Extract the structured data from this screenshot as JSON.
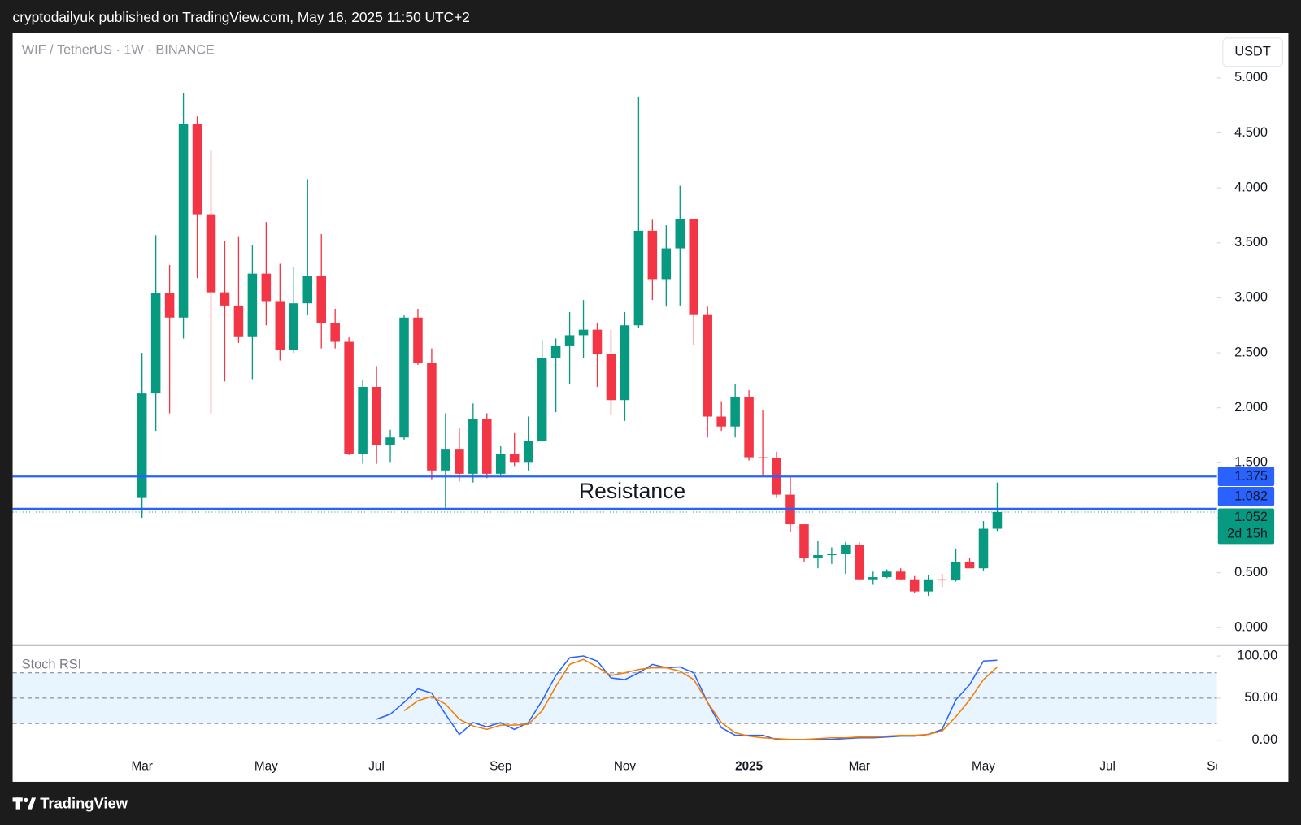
{
  "header": {
    "text": "cryptodailyuk published on TradingView.com, May 16, 2025 11:50 UTC+2"
  },
  "footer": {
    "brand": "TradingView"
  },
  "chart_data": [
    {
      "type": "candlestick",
      "symbol": "WIF / TetherUS · 1W · BINANCE",
      "currency": "USDT",
      "annotation": "Resistance",
      "categories": [
        "Mar",
        null,
        null,
        null,
        null,
        null,
        null,
        null,
        null,
        "May",
        null,
        null,
        null,
        null,
        null,
        null,
        null,
        "Jul",
        null,
        null,
        null,
        null,
        null,
        null,
        null,
        null,
        "Sep",
        null,
        null,
        null,
        null,
        null,
        null,
        null,
        null,
        "Nov",
        null,
        null,
        null,
        null,
        null,
        null,
        null,
        null,
        "2025",
        null,
        null,
        null,
        null,
        null,
        null,
        null,
        "Mar",
        null,
        null,
        null,
        null,
        null,
        null,
        null,
        null,
        "May",
        null,
        null,
        null,
        null,
        null,
        null,
        null,
        null,
        "Jul",
        null,
        null,
        null,
        null,
        null,
        null,
        null,
        "Sep"
      ],
      "open": [
        1.18,
        2.13,
        3.04,
        2.82,
        4.58,
        3.76,
        3.05,
        2.93,
        2.65,
        3.22,
        2.97,
        2.53,
        2.95,
        3.2,
        2.77,
        2.6,
        1.58,
        2.19,
        1.66,
        1.73,
        2.82,
        2.41,
        1.43,
        1.62,
        1.4,
        1.9,
        1.4,
        1.58,
        1.5,
        1.7,
        2.45,
        2.56,
        2.66,
        2.71,
        2.49,
        2.07,
        2.75,
        3.61,
        3.17,
        3.45,
        3.72,
        2.85,
        1.92,
        1.83,
        2.1,
        1.55,
        1.54,
        1.21,
        0.94,
        0.63,
        0.66,
        0.67,
        0.75,
        0.44,
        0.46,
        0.51,
        0.44,
        0.33,
        0.44,
        0.43,
        0.6,
        0.54,
        0.9,
        null,
        null,
        null,
        null,
        null,
        null,
        null,
        null,
        null,
        null,
        null,
        null,
        null,
        null,
        null,
        null
      ],
      "high": [
        2.5,
        3.57,
        3.3,
        4.86,
        4.65,
        4.34,
        3.52,
        3.56,
        3.48,
        3.69,
        3.31,
        3.28,
        4.08,
        3.58,
        2.9,
        2.64,
        2.25,
        2.38,
        1.8,
        2.84,
        2.9,
        2.54,
        1.95,
        1.82,
        2.04,
        1.95,
        1.65,
        1.77,
        1.92,
        2.62,
        2.63,
        2.87,
        2.98,
        2.77,
        2.71,
        2.87,
        4.83,
        3.71,
        3.66,
        4.02,
        3.72,
        2.92,
        2.06,
        2.22,
        2.16,
        1.98,
        1.6,
        1.37,
        0.94,
        0.79,
        0.73,
        0.78,
        0.78,
        0.51,
        0.53,
        0.54,
        0.47,
        0.48,
        0.49,
        0.72,
        0.63,
        0.97,
        1.32,
        null,
        null,
        null,
        null,
        null,
        null,
        null,
        null,
        null,
        null,
        null,
        null,
        null,
        null,
        null,
        null
      ],
      "low": [
        1.0,
        1.79,
        1.95,
        2.63,
        3.18,
        1.95,
        2.24,
        2.59,
        2.26,
        2.75,
        2.43,
        2.5,
        2.84,
        2.54,
        2.54,
        1.57,
        1.49,
        1.49,
        1.5,
        1.71,
        2.39,
        1.35,
        1.09,
        1.33,
        1.32,
        1.36,
        1.38,
        1.47,
        1.43,
        1.69,
        1.96,
        2.22,
        2.45,
        2.19,
        1.94,
        1.88,
        2.73,
        2.98,
        2.92,
        2.93,
        2.57,
        1.73,
        1.79,
        1.73,
        1.52,
        1.37,
        1.18,
        0.87,
        0.6,
        0.54,
        0.58,
        0.49,
        0.43,
        0.39,
        0.45,
        0.43,
        0.32,
        0.29,
        0.37,
        0.42,
        0.54,
        0.52,
        0.88,
        null,
        null,
        null,
        null,
        null,
        null,
        null,
        null,
        null,
        null,
        null,
        null,
        null,
        null,
        null,
        null
      ],
      "close": [
        2.13,
        3.04,
        2.82,
        4.58,
        3.76,
        3.05,
        2.93,
        2.65,
        3.22,
        2.97,
        2.53,
        2.95,
        3.2,
        2.77,
        2.6,
        1.58,
        2.19,
        1.66,
        1.73,
        2.82,
        2.41,
        1.43,
        1.62,
        1.4,
        1.9,
        1.4,
        1.58,
        1.5,
        1.7,
        2.45,
        2.56,
        2.66,
        2.71,
        2.49,
        2.07,
        2.75,
        3.61,
        3.17,
        3.45,
        3.72,
        2.85,
        1.92,
        1.83,
        2.1,
        1.55,
        1.54,
        1.21,
        0.94,
        0.63,
        0.66,
        0.67,
        0.75,
        0.44,
        0.46,
        0.51,
        0.44,
        0.33,
        0.44,
        0.43,
        0.6,
        0.54,
        0.9,
        1.052,
        null,
        null,
        null,
        null,
        null,
        null,
        null,
        null,
        null,
        null,
        null,
        null,
        null,
        null,
        null,
        null
      ],
      "up_color": "#089981",
      "down_color": "#f23645",
      "hlines": [
        1.375,
        1.082
      ],
      "hline_color": "#2962ff",
      "countdown": "2d 15h",
      "ylim": [
        -0.158,
        5.407
      ],
      "yticks": [
        {
          "value": 0,
          "label": "0.000"
        },
        {
          "value": 0.5,
          "label": "0.500"
        },
        {
          "value": 1,
          "label": "1.000"
        },
        {
          "value": 1.5,
          "label": "1.500"
        },
        {
          "value": 2,
          "label": "2.000"
        },
        {
          "value": 2.5,
          "label": "2.500"
        },
        {
          "value": 3,
          "label": "3.000"
        },
        {
          "value": 3.5,
          "label": "3.500"
        },
        {
          "value": 4,
          "label": "4.000"
        },
        {
          "value": 4.5,
          "label": "4.500"
        },
        {
          "value": 5,
          "label": "5.000"
        }
      ],
      "grid": false
    },
    {
      "type": "line",
      "title": "Stoch RSI",
      "series": [
        {
          "color": "#2962ff",
          "values": [
            null,
            null,
            null,
            null,
            null,
            null,
            null,
            null,
            null,
            null,
            null,
            null,
            null,
            null,
            null,
            null,
            null,
            25,
            31,
            45,
            61,
            56,
            31,
            7,
            21,
            16,
            21,
            13,
            21,
            47,
            77,
            98,
            100,
            94,
            74,
            72,
            80,
            90,
            86,
            87,
            80,
            45,
            15,
            6,
            6,
            6,
            1,
            1,
            1,
            1,
            1,
            2,
            3,
            3,
            4,
            5,
            5,
            7,
            13,
            48,
            66,
            94,
            95,
            null,
            null,
            null,
            null,
            null,
            null,
            null,
            null,
            null,
            null,
            null,
            null,
            null,
            null,
            null,
            null
          ]
        },
        {
          "color": "#f57c00",
          "values": [
            null,
            null,
            null,
            null,
            null,
            null,
            null,
            null,
            null,
            null,
            null,
            null,
            null,
            null,
            null,
            null,
            null,
            null,
            null,
            35,
            47,
            52,
            43,
            25,
            17,
            13,
            18,
            18,
            19,
            35,
            64,
            90,
            96,
            87,
            77,
            80,
            84,
            86,
            86,
            82,
            72,
            45,
            21,
            9,
            5,
            3,
            2,
            1,
            1,
            2,
            3,
            3,
            4,
            4,
            5,
            6,
            6,
            7,
            11,
            28,
            48,
            72,
            87,
            null,
            null,
            null,
            null,
            null,
            null,
            null,
            null,
            null,
            null,
            null,
            null,
            null,
            null,
            null,
            null
          ]
        }
      ],
      "levels": [
        80,
        50,
        20
      ],
      "ylim": [
        -11.9,
        111.9
      ],
      "yticks": [
        {
          "value": 100,
          "label": "100.00"
        },
        {
          "value": 50,
          "label": "50.00"
        },
        {
          "value": 0,
          "label": "0.00"
        }
      ],
      "grid": false
    }
  ]
}
